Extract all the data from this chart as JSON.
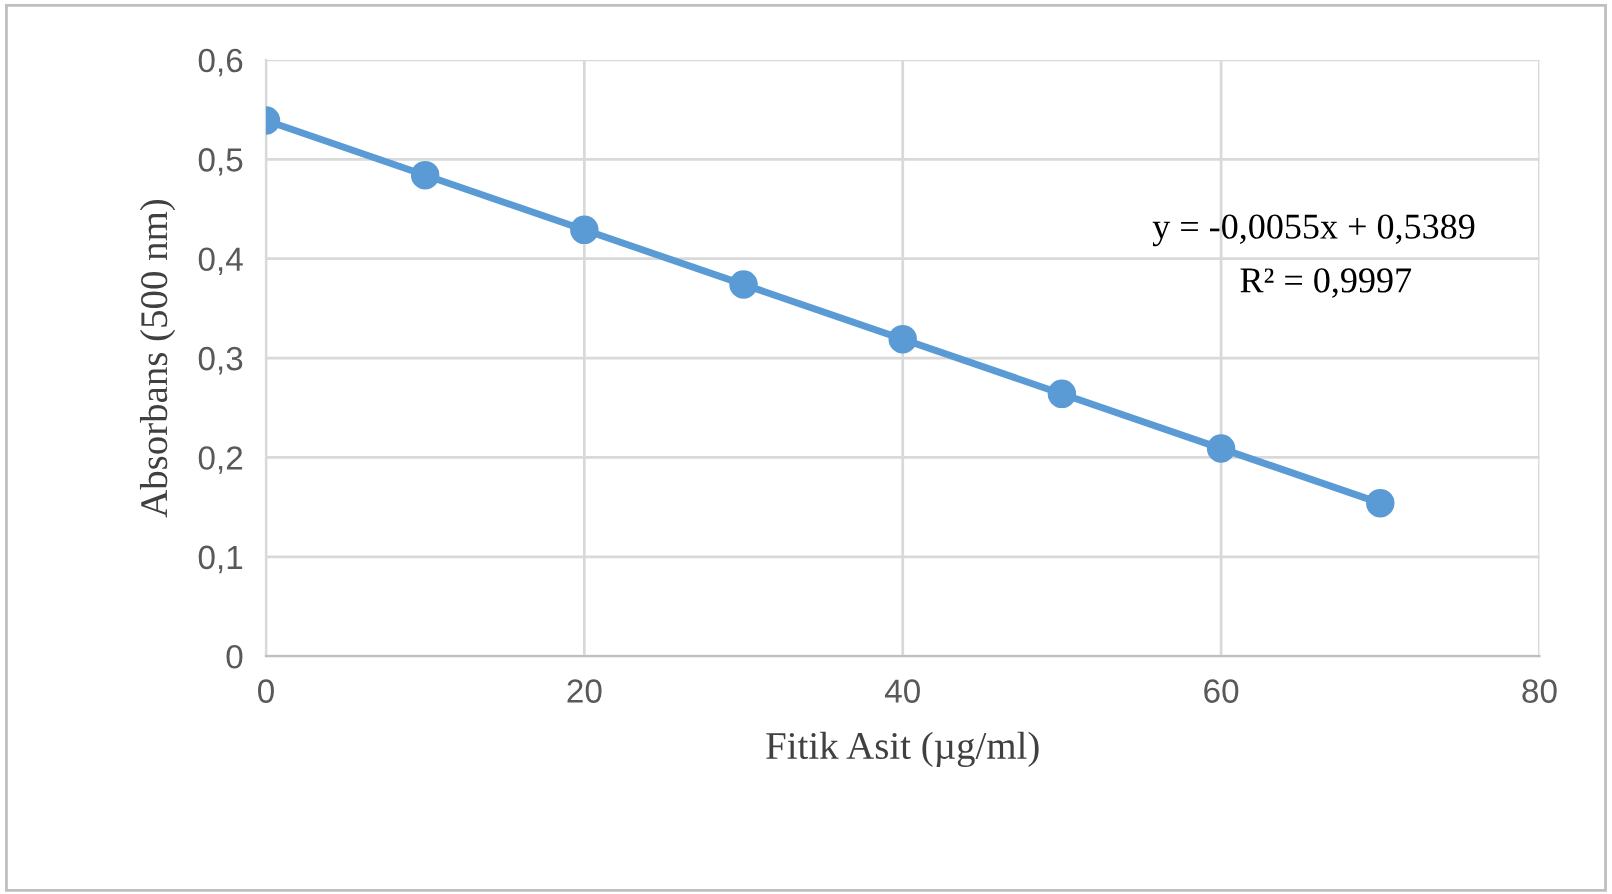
{
  "chart_data": {
    "type": "scatter",
    "xlabel": "Fitik Asit (µg/ml)",
    "ylabel": "Absorbans (500 nm)",
    "series": [
      {
        "color": "#5b9bd5",
        "marker": "circle",
        "x": [
          0,
          10,
          20,
          30,
          40,
          50,
          60,
          70
        ],
        "values": [
          0.539,
          0.484,
          0.429,
          0.374,
          0.319,
          0.264,
          0.209,
          0.154
        ]
      },
      {
        "type": "line",
        "color": "#5b9bd5",
        "marker": "none",
        "line_style": "solid",
        "x": [
          0,
          70
        ],
        "values": [
          0.539,
          0.154
        ]
      }
    ],
    "xlim": [
      0,
      80
    ],
    "xticks": [
      0,
      20,
      40,
      60,
      80
    ],
    "ylim": [
      0,
      0.6
    ],
    "yticks": [
      0,
      {
        "value": 0.1,
        "label": "0,1"
      },
      {
        "value": 0.2,
        "label": "0,2"
      },
      {
        "value": 0.3,
        "label": "0,3"
      },
      {
        "value": 0.4,
        "label": "0,4"
      },
      {
        "value": 0.5,
        "label": "0,5"
      },
      {
        "value": 0.6,
        "label": "0,6"
      }
    ],
    "grid": true,
    "annotations": [
      "y = -0,0055x + 0,5389",
      "R² = 0,9997"
    ]
  }
}
